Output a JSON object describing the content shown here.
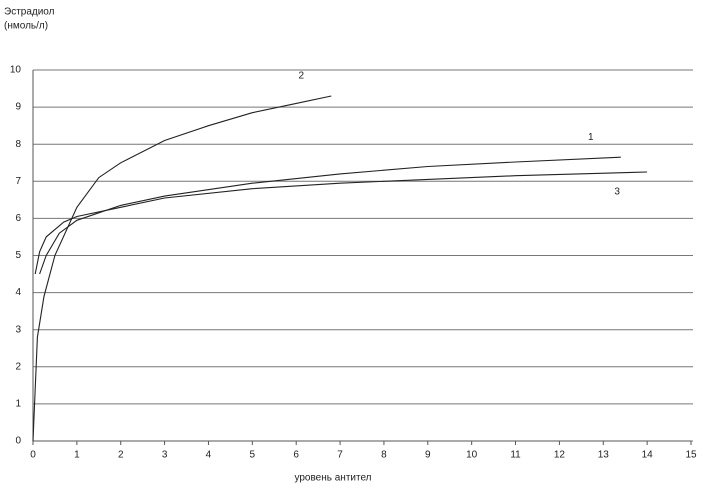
{
  "chart_data": {
    "type": "line",
    "y_label": [
      "Эстрадиол",
      "(нмоль/л)"
    ],
    "x_label": "уровень антител",
    "xlim": [
      0,
      15
    ],
    "ylim": [
      0,
      10
    ],
    "xticks": [
      0,
      1,
      2,
      3,
      4,
      5,
      6,
      7,
      8,
      9,
      10,
      11,
      12,
      13,
      14,
      15
    ],
    "yticks": [
      0,
      1,
      2,
      3,
      4,
      5,
      6,
      7,
      8,
      9,
      10
    ],
    "grid": true,
    "series": [
      {
        "name": "1",
        "color": "#222222",
        "x": [
          0.15,
          0.3,
          0.6,
          1,
          2,
          3,
          5,
          7,
          9,
          11,
          13.4
        ],
        "values": [
          4.5,
          5.0,
          5.6,
          5.95,
          6.35,
          6.6,
          6.95,
          7.2,
          7.4,
          7.52,
          7.65
        ]
      },
      {
        "name": "2",
        "color": "#222222",
        "x": [
          0,
          0.1,
          0.25,
          0.5,
          1,
          1.5,
          2,
          3,
          4,
          5,
          6,
          6.8
        ],
        "values": [
          0,
          2.8,
          3.9,
          5.0,
          6.3,
          7.1,
          7.5,
          8.1,
          8.5,
          8.85,
          9.1,
          9.3
        ]
      },
      {
        "name": "3",
        "color": "#222222",
        "x": [
          0.05,
          0.15,
          0.3,
          0.7,
          1,
          2,
          3,
          5,
          7,
          9,
          11,
          14
        ],
        "values": [
          4.5,
          5.1,
          5.5,
          5.9,
          6.05,
          6.3,
          6.55,
          6.8,
          6.95,
          7.05,
          7.15,
          7.25
        ]
      }
    ]
  }
}
